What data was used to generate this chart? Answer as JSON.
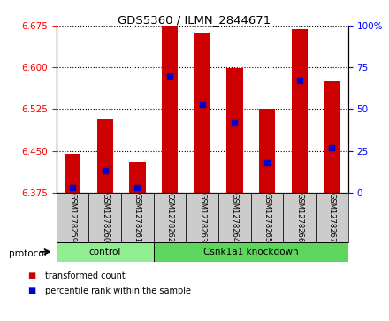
{
  "title": "GDS5360 / ILMN_2844671",
  "samples": [
    "GSM1278259",
    "GSM1278260",
    "GSM1278261",
    "GSM1278262",
    "GSM1278263",
    "GSM1278264",
    "GSM1278265",
    "GSM1278266",
    "GSM1278267"
  ],
  "bar_heights": [
    6.445,
    6.507,
    6.43,
    6.675,
    6.662,
    6.598,
    6.525,
    6.668,
    6.575
  ],
  "percentile_ranks": [
    3,
    13,
    3,
    70,
    53,
    42,
    18,
    67,
    27
  ],
  "y_min": 6.375,
  "y_max": 6.675,
  "y_ticks": [
    6.375,
    6.45,
    6.525,
    6.6,
    6.675
  ],
  "right_y_ticks": [
    0,
    25,
    50,
    75,
    100
  ],
  "bar_color": "#cc0000",
  "blue_color": "#0000cc",
  "control_label": "control",
  "knockdown_label": "Csnk1a1 knockdown",
  "protocol_label": "protocol",
  "legend_red": "transformed count",
  "legend_blue": "percentile rank within the sample",
  "control_color": "#90ee90",
  "knockdown_color": "#5cd65c",
  "bg_color": "#cccccc",
  "plot_bg": "#ffffff"
}
